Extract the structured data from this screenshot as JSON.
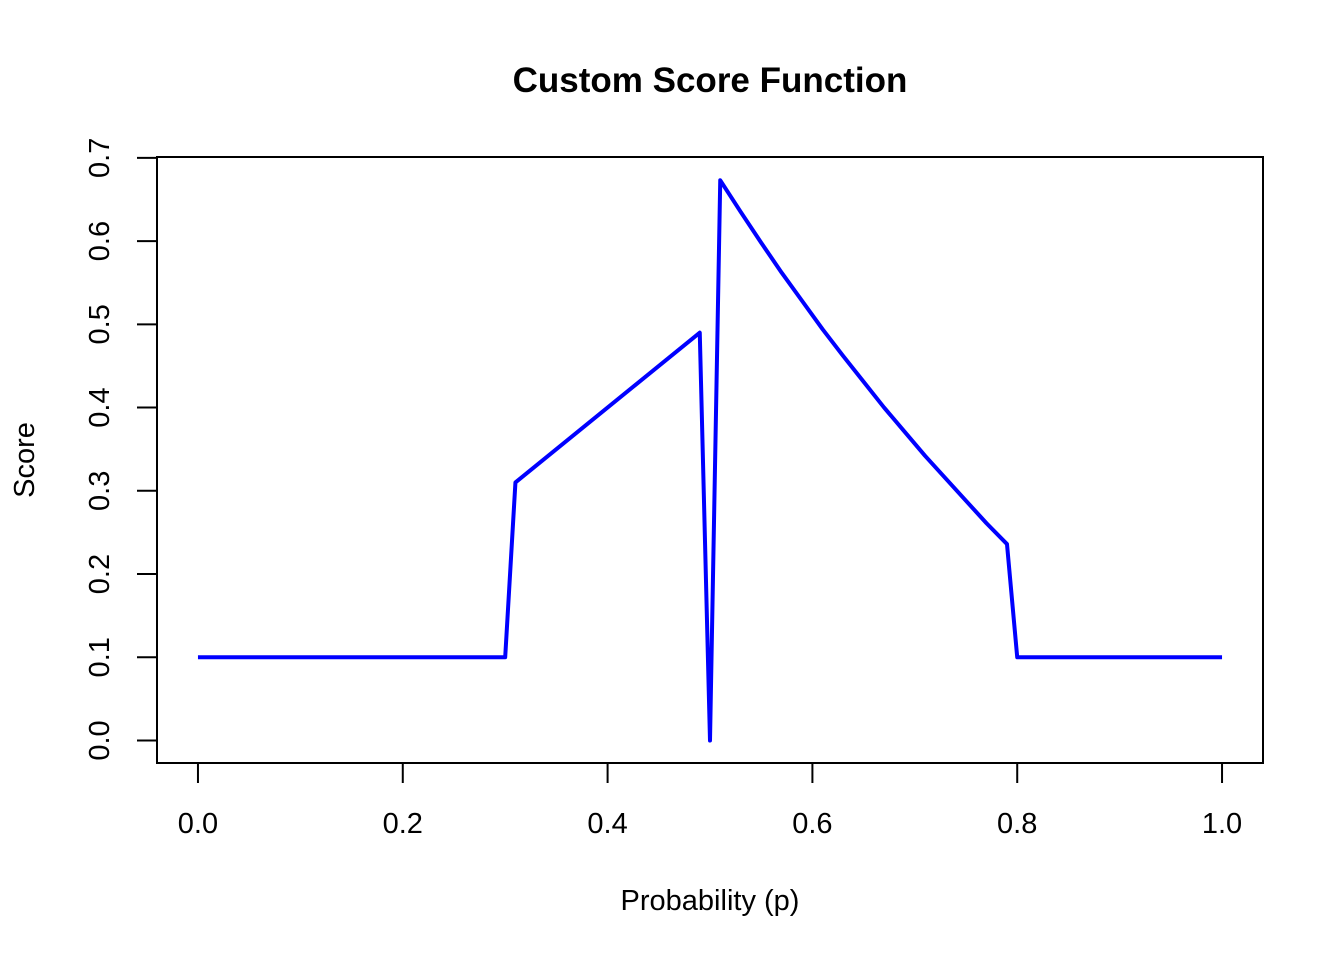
{
  "chart_data": {
    "type": "line",
    "title": "Custom Score Function",
    "x_label": "Probability (p)",
    "y_label": "Score",
    "x": [
      0,
      0.3,
      0.31,
      0.49,
      0.5,
      0.51,
      0.53,
      0.55,
      0.57,
      0.59,
      0.61,
      0.63,
      0.65,
      0.67,
      0.69,
      0.71,
      0.73,
      0.75,
      0.77,
      0.79,
      0.8,
      1
    ],
    "series": [
      {
        "color": "#0000ff",
        "values": [
          0.1,
          0.1,
          0.31,
          0.49,
          0,
          0.673,
          0.635,
          0.598,
          0.562,
          0.528,
          0.494,
          0.462,
          0.431,
          0.4,
          0.371,
          0.342,
          0.315,
          0.288,
          0.261,
          0.236,
          0.1,
          0.1
        ]
      }
    ],
    "xlim": [
      -0.04,
      1.04
    ],
    "ylim": [
      -0.027,
      0.701
    ],
    "xticks": [
      {
        "value": 0,
        "label": "0.0"
      },
      0.2,
      0.4,
      0.6,
      0.8,
      {
        "value": 1,
        "label": "1.0"
      }
    ],
    "yticks": [
      {
        "value": 0,
        "label": "0.0"
      },
      0.1,
      0.2,
      0.3,
      0.4,
      0.5,
      0.6,
      0.7
    ]
  }
}
